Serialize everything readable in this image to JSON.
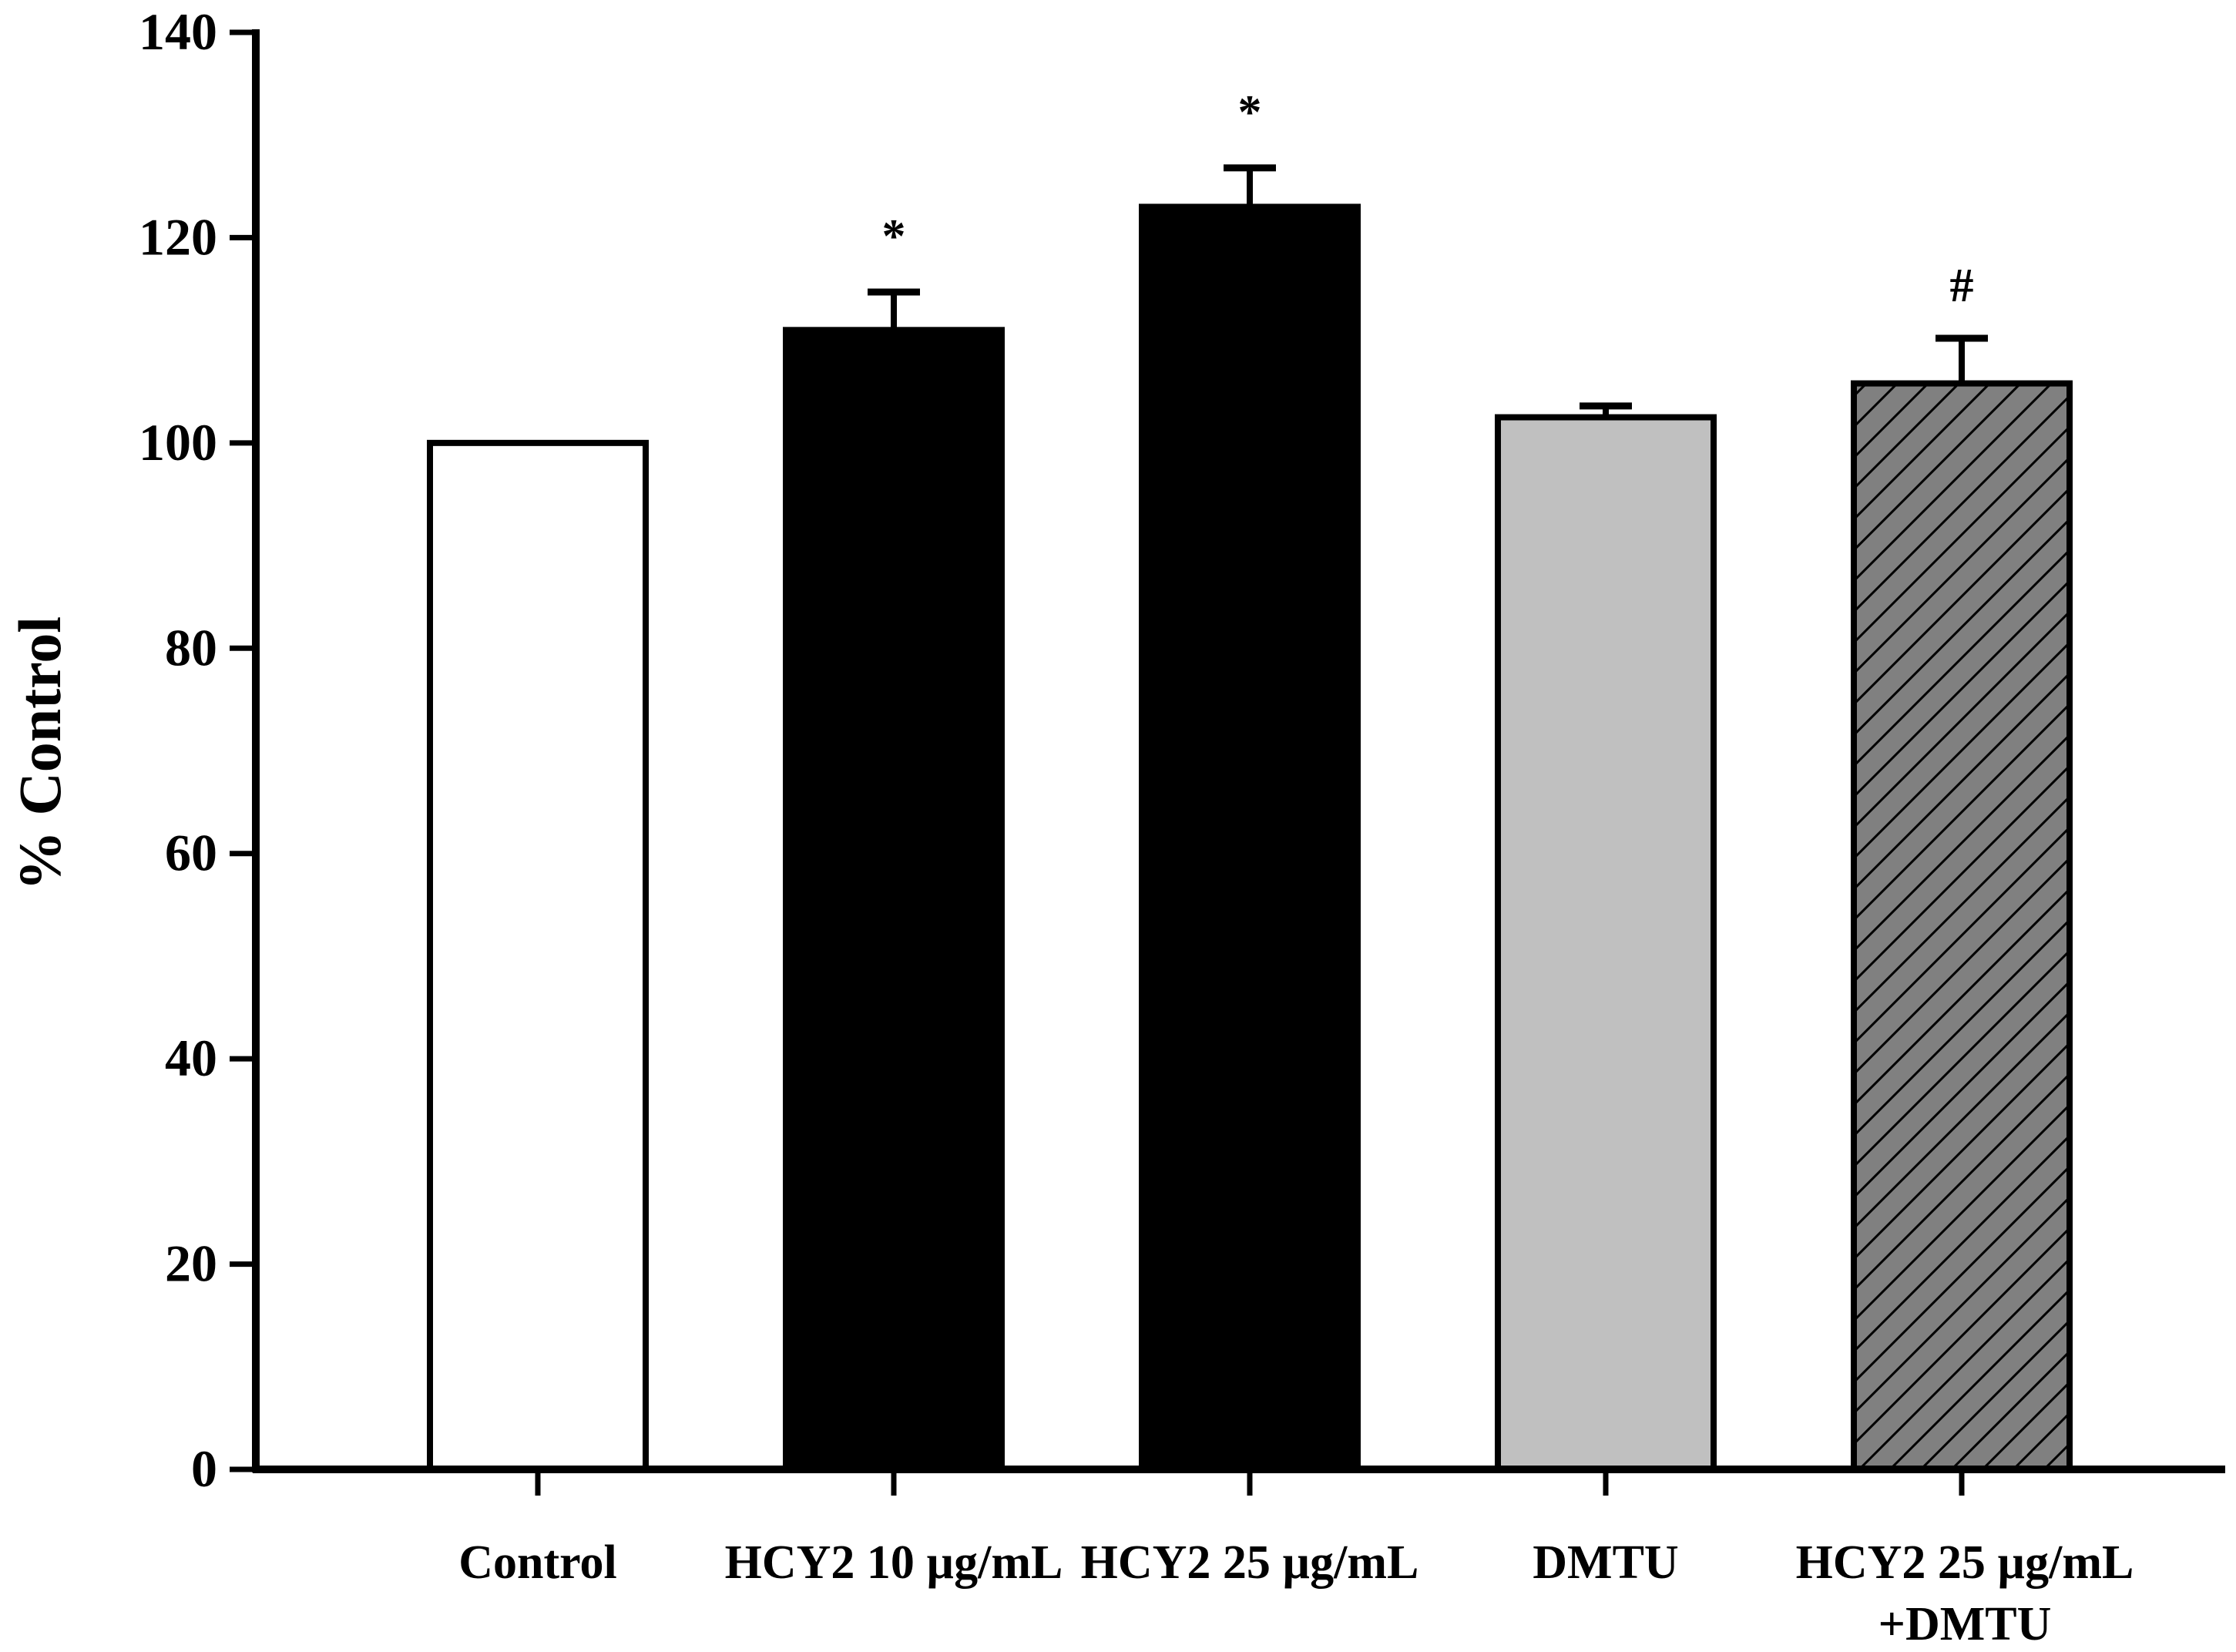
{
  "chart_data": {
    "type": "bar",
    "title": "",
    "xlabel": "",
    "ylabel": "% Control",
    "ylim": [
      0,
      140
    ],
    "yticks": [
      0,
      20,
      40,
      60,
      80,
      100,
      120,
      140
    ],
    "grid": false,
    "legend": "none",
    "categories": [
      {
        "lines": [
          "Control"
        ]
      },
      {
        "lines": [
          "HCY2 10 µg/mL"
        ]
      },
      {
        "lines": [
          "HCY2 25 µg/mL"
        ]
      },
      {
        "lines": [
          "DMTU"
        ]
      },
      {
        "lines": [
          "HCY2 25 µg/mL",
          "+DMTU"
        ]
      }
    ],
    "values": [
      100,
      111,
      123,
      102.5,
      105.8
    ],
    "errors": [
      0,
      3.7,
      3.8,
      1.1,
      4.4
    ],
    "annotations": [
      "",
      "*",
      "*",
      "",
      "#"
    ],
    "fills": [
      "#ffffff",
      "#000000",
      "#000000",
      "#c0c0c0",
      "#808080"
    ],
    "hatched": [
      false,
      false,
      false,
      false,
      true
    ],
    "colors": {
      "stroke": "#000000",
      "hatch": "#000000"
    }
  }
}
